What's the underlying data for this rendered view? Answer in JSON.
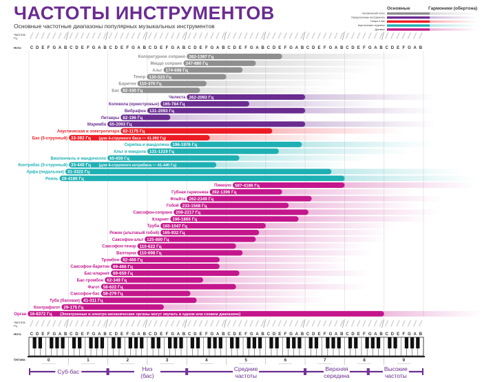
{
  "title": "ЧАСТОТЫ ИНСТРУМЕНТОВ",
  "subtitle": "Основные частотные диапазоны популярных музыкальных инструментов",
  "legend": {
    "fundamental_label": "Основные",
    "harmonics_label": "Гармоники (обертона)",
    "items": [
      {
        "label": "Человеческий голос",
        "color": "#8f8f8f"
      },
      {
        "label": "Перкуссионные инструменты",
        "color": "#6a2c91"
      },
      {
        "label": "Гитара и бас",
        "color": "#ed1c24"
      },
      {
        "label": "Акустические струнные",
        "color": "#1fb0b4"
      },
      {
        "label": "Духовые",
        "color": "#c4168c"
      }
    ]
  },
  "axis": {
    "freq_label_line1": "Частота",
    "freq_label_line2": "Гц",
    "note_label": "Нота",
    "octave_label": "Октава",
    "notes": [
      "C",
      "D",
      "E",
      "F",
      "G",
      "A",
      "B"
    ],
    "octaves": [
      "0",
      "1",
      "2",
      "3",
      "4",
      "5",
      "6",
      "7",
      "8",
      "9"
    ],
    "scale": "log2"
  },
  "bands": [
    {
      "line1": "Суб-бас",
      "line2": "",
      "from_octave": 0,
      "to_octave": 2
    },
    {
      "line1": "Низ",
      "line2": "(бас)",
      "from_octave": 2,
      "to_octave": 4
    },
    {
      "line1": "Средние",
      "line2": "частоты",
      "from_octave": 4,
      "to_octave": 7
    },
    {
      "line1": "Верхняя",
      "line2": "середина",
      "from_octave": 7,
      "to_octave": 8.6
    },
    {
      "line1": "Высокие",
      "line2": "частоты",
      "from_octave": 8.6,
      "to_octave": 10
    }
  ],
  "chart_data": {
    "type": "bar",
    "orientation": "horizontal-range",
    "xscale": "log",
    "xlim_hz": [
      16.35,
      8372
    ],
    "series": [
      {
        "name": "Человеческий голос",
        "color": "#8f8f8f",
        "items": [
          {
            "label": "Колоратурное сопрано",
            "min": 262,
            "max": 1397,
            "range": "262-1397 Гц"
          },
          {
            "label": "Меццо сопрано",
            "min": 247,
            "max": 880,
            "range": "247-880 Гц"
          },
          {
            "label": "Альт",
            "min": 174,
            "max": 698,
            "range": "174-698 Гц"
          },
          {
            "label": "Тенор",
            "min": 130,
            "max": 523,
            "range": "130-523 Гц"
          },
          {
            "label": "Баритон",
            "min": 110,
            "max": 370,
            "range": "110-370 Гц"
          },
          {
            "label": "Бас",
            "min": 82,
            "max": 330,
            "range": "82-330 Гц"
          }
        ]
      },
      {
        "name": "Перкуссионные инструменты",
        "color": "#6a2c91",
        "items": [
          {
            "label": "Челеста",
            "min": 262,
            "max": 2093,
            "range": "262-2093 Гц"
          },
          {
            "label": "Колокола (оркестровые)",
            "min": 165,
            "max": 784,
            "range": "165-784 Гц"
          },
          {
            "label": "Вибрафон",
            "min": 131,
            "max": 2093,
            "range": "131-2093 Гц"
          },
          {
            "label": "Литавры",
            "min": 82,
            "max": 196,
            "range": "82-196 Гц"
          },
          {
            "label": "Маримба",
            "min": 65,
            "max": 2093,
            "range": "65-2093 Гц"
          }
        ]
      },
      {
        "name": "Гитара и бас",
        "color": "#ed1c24",
        "items": [
          {
            "label": "Акустическая и электрогитара",
            "min": 82,
            "max": 1175,
            "range": "82-1175 Гц"
          },
          {
            "label": "Бас (5-струнный)",
            "min": 33,
            "max": 392,
            "range": "33-392 Гц",
            "note": "(для 4-струнного баса — 41-392 Гц)"
          }
        ]
      },
      {
        "name": "Акустические струнные",
        "color": "#1fb0b4",
        "items": [
          {
            "label": "Скрипка и мандолина",
            "min": 196,
            "max": 1976,
            "range": "196-1976 Гц"
          },
          {
            "label": "Альт и мандола",
            "min": 131,
            "max": 1319,
            "range": "131-1319 Гц"
          },
          {
            "label": "Виолончель и мандочелло",
            "min": 65,
            "max": 659,
            "range": "65-659 Гц"
          },
          {
            "label": "Контрабас (5-струнный)",
            "min": 33,
            "max": 440,
            "range": "33-440 Гц",
            "note": "(для 4-струнного котрабаса — 41-440 Гц)"
          },
          {
            "label": "Арфа (педальная)",
            "min": 31,
            "max": 3322,
            "range": "31-3322 Гц"
          },
          {
            "label": "Рояль",
            "min": 28,
            "max": 4186,
            "range": "28-4186 Гц"
          }
        ]
      },
      {
        "name": "Духовые",
        "color": "#c4168c",
        "items": [
          {
            "label": "Пикколо",
            "min": 587,
            "max": 4186,
            "range": "587-4186 Гц"
          },
          {
            "label": "Губная гармоника",
            "min": 392,
            "max": 1396,
            "range": "392-1396 Гц"
          },
          {
            "label": "Флейта",
            "min": 262,
            "max": 2349,
            "range": "262-2349 Гц"
          },
          {
            "label": "Гобой",
            "min": 233,
            "max": 1568,
            "range": "233-1568 Гц"
          },
          {
            "label": "Саксофон-сопрано",
            "min": 208,
            "max": 2217,
            "range": "208-2217 Гц"
          },
          {
            "label": "Кларнет",
            "min": 196,
            "max": 1865,
            "range": "196-1865 Гц"
          },
          {
            "label": "Труба",
            "min": 165,
            "max": 1047,
            "range": "165-1047 Гц"
          },
          {
            "label": "Рожок (альтовый гобой)",
            "min": 165,
            "max": 932,
            "range": "165-932 Гц"
          },
          {
            "label": "Саксофон-альт",
            "min": 125,
            "max": 880,
            "range": "125-880 Гц"
          },
          {
            "label": "Саксофон-тенор",
            "min": 110,
            "max": 622,
            "range": "110-622 Гц"
          },
          {
            "label": "Валторна",
            "min": 110,
            "max": 698,
            "range": "110-698 Гц"
          },
          {
            "label": "Тромбон",
            "min": 82,
            "max": 466,
            "range": "82-466 Гц"
          },
          {
            "label": "Саксофон-баритон",
            "min": 69,
            "max": 466,
            "range": "69-466 Гц"
          },
          {
            "label": "Бас-кларнет",
            "min": 69,
            "max": 659,
            "range": "69-659 Гц"
          },
          {
            "label": "Бас-тромбон",
            "min": 62,
            "max": 349,
            "range": "62-349 Гц"
          },
          {
            "label": "Фагот",
            "min": 58,
            "max": 622,
            "range": "58-622 Гц"
          },
          {
            "label": "Саксофон-бас",
            "min": 58,
            "max": 279,
            "range": "58-279 Гц"
          },
          {
            "label": "Туба (басовая)",
            "min": 41,
            "max": 311,
            "range": "41-311 Гц"
          },
          {
            "label": "Контрафагот",
            "min": 29,
            "max": 175,
            "range": "29-175 Гц"
          },
          {
            "label": "Орган",
            "min": 16,
            "max": 8372,
            "range": "16-8372 Гц",
            "note": "(Электронные и электро-механические органы могут звучать в одном или схожем диапазоне)"
          }
        ]
      }
    ]
  }
}
